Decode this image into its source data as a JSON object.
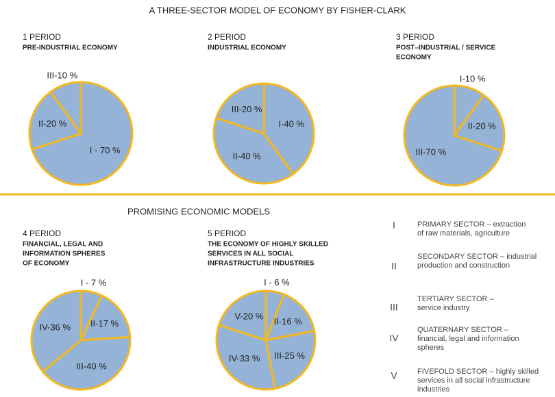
{
  "title": "A THREE-SECTOR MODEL OF ECONOMY BY FISHER-CLARK",
  "section_title": "PROMISING ECONOMIC MODELS",
  "chart_data": [
    {
      "type": "pie",
      "title": "1 PERIOD",
      "subtitle": [
        "PRE-INDUSTRIAL ECONOMY"
      ],
      "values": [
        70,
        20,
        10
      ],
      "value_labels": [
        "I - 70 %",
        "II-20 %",
        "III-10 %"
      ],
      "color": "#95b3d7",
      "edge_color": "#f5b81c"
    },
    {
      "type": "pie",
      "title": "2 PERIOD",
      "subtitle": [
        "INDUSTRIAL ECONOMY"
      ],
      "values": [
        40,
        40,
        20
      ],
      "value_labels": [
        "I-40 %",
        "II-40 %",
        "III-20 %"
      ],
      "color": "#95b3d7",
      "edge_color": "#f5b81c"
    },
    {
      "type": "pie",
      "title": "3 PERIOD",
      "subtitle": [
        "POST–INDUSTRIAL / SERVICE",
        "ECONOMY"
      ],
      "values": [
        10,
        20,
        70
      ],
      "value_labels": [
        "I-10 %",
        "II-20 %",
        "III-70 %"
      ],
      "color": "#95b3d7",
      "edge_color": "#f5b81c"
    },
    {
      "type": "pie",
      "title": "4 PERIOD",
      "subtitle": [
        "FINANCIAL, LEGAL AND",
        "INFORMATION SPHERES",
        "OF ECONOMY"
      ],
      "values": [
        7,
        17,
        40,
        36
      ],
      "value_labels": [
        "I - 7 %",
        "II-17 %",
        "III-40 %",
        "IV-36 %"
      ],
      "color": "#95b3d7",
      "edge_color": "#f5b81c"
    },
    {
      "type": "pie",
      "title": "5 PERIOD",
      "subtitle": [
        "THE ECONOMY OF HIGHLY SKILLED",
        "SERVICES IN ALL SOCIAL",
        "INFRASTRUCTURE INDUSTRIES"
      ],
      "values": [
        6,
        16,
        25,
        33,
        20
      ],
      "value_labels": [
        "I - 6 %",
        "II-16 %",
        "III-25 %",
        "IV-33 %",
        "V-20 %"
      ],
      "color": "#95b3d7",
      "edge_color": "#f5b81c"
    }
  ],
  "legend": [
    {
      "symbol": "I",
      "text": [
        "PRIMARY SECTOR – extraction",
        "of raw materials, agriculture"
      ]
    },
    {
      "symbol": "II",
      "text": [
        "SECONDARY SECTOR – industrial",
        "production and construction"
      ]
    },
    {
      "symbol": "III",
      "text": [
        "TERTIARY SECTOR –",
        "service industry"
      ]
    },
    {
      "symbol": "IV",
      "text": [
        "QUATERNARY SECTOR –",
        "financial, legal and information",
        "spheres"
      ]
    },
    {
      "symbol": "V",
      "text": [
        "FIVEFOLD SECTOR – highly skilled",
        "services in all social infrastructure",
        "industries"
      ]
    }
  ]
}
